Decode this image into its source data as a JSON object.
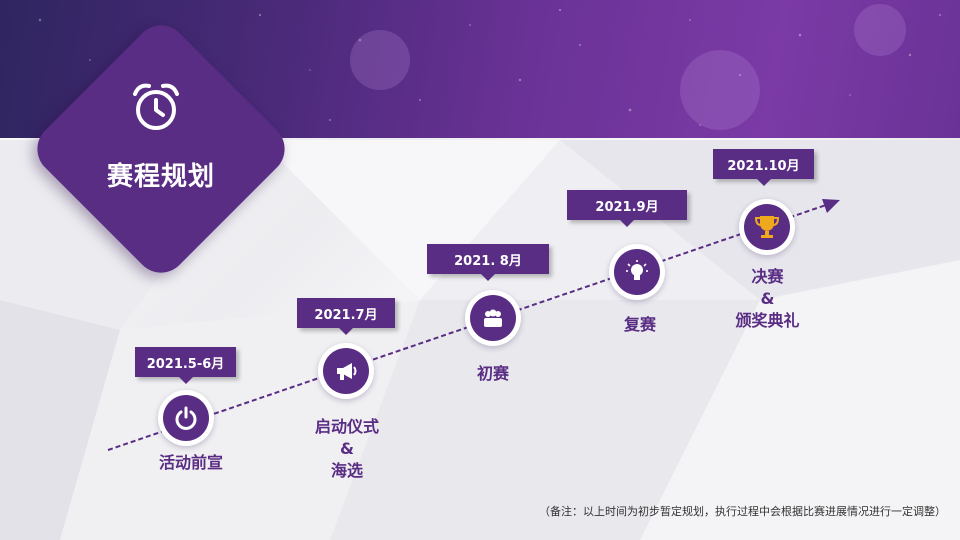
{
  "slide": {
    "title": "赛程规划",
    "note": "（备注：以上时间为初步暂定规划，执行过程中会根据比赛进展情况进行一定调整）"
  },
  "colors": {
    "primary": "#5a2d84",
    "banner": "#4b2a7a",
    "trophy": "#f0a81c"
  },
  "stages": [
    {
      "date": "2021.5-6月",
      "label": "活动前宣",
      "icon": "power-icon"
    },
    {
      "date": "2021.7月",
      "label_line1": "启动仪式",
      "label_line2": "&",
      "label_line3": "海选",
      "icon": "megaphone-icon"
    },
    {
      "date": "2021. 8月",
      "label": "初赛",
      "icon": "group-icon"
    },
    {
      "date": "2021.9月",
      "label": "复赛",
      "icon": "lightbulb-icon"
    },
    {
      "date": "2021.10月",
      "label_line1": "决赛",
      "label_line2": "&",
      "label_line3": "颁奖典礼",
      "icon": "trophy-icon"
    }
  ]
}
